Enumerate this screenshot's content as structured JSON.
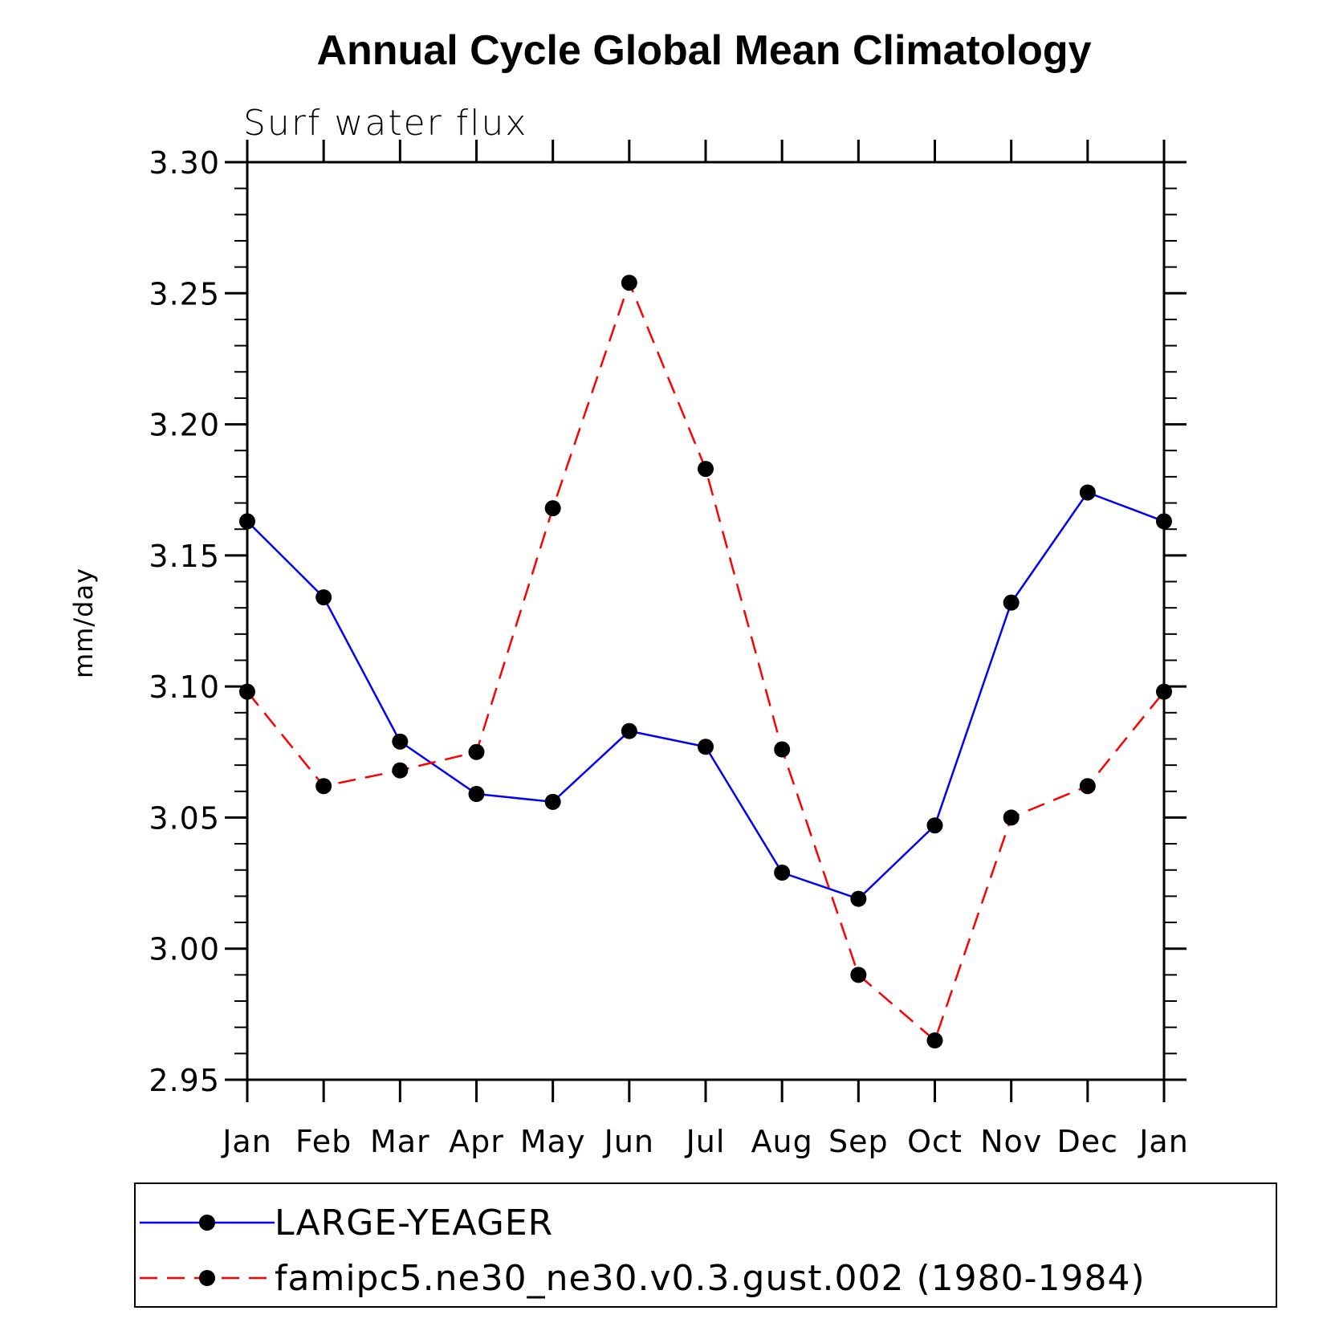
{
  "chart_data": {
    "type": "line",
    "title": "Annual Cycle Global Mean Climatology",
    "subtitle": "Surf water flux",
    "xlabel": "",
    "ylabel": "mm/day",
    "categories": [
      "Jan",
      "Feb",
      "Mar",
      "Apr",
      "May",
      "Jun",
      "Jul",
      "Aug",
      "Sep",
      "Oct",
      "Nov",
      "Dec",
      "Jan"
    ],
    "ylim": [
      2.95,
      3.3
    ],
    "yticks": [
      2.95,
      3.0,
      3.05,
      3.1,
      3.15,
      3.2,
      3.25,
      3.3
    ],
    "ytick_labels": [
      "2.95",
      "3.00",
      "3.05",
      "3.10",
      "3.15",
      "3.20",
      "3.25",
      "3.30"
    ],
    "series": [
      {
        "name": "LARGE-YEAGER",
        "color": "#0000ff",
        "style": "solid",
        "values": [
          3.163,
          3.134,
          3.079,
          3.059,
          3.056,
          3.083,
          3.077,
          3.029,
          3.019,
          3.047,
          3.132,
          3.174,
          3.163
        ]
      },
      {
        "name": "famipc5.ne30_ne30.v0.3.gust.002 (1980-1984)",
        "color": "#ff0000",
        "style": "dashed",
        "values": [
          3.098,
          3.062,
          3.068,
          3.075,
          3.168,
          3.254,
          3.183,
          3.076,
          2.99,
          2.965,
          3.05,
          3.062,
          3.098
        ]
      }
    ],
    "legend_position": "bottom",
    "marker": "filled-circle",
    "marker_color": "#000000"
  }
}
